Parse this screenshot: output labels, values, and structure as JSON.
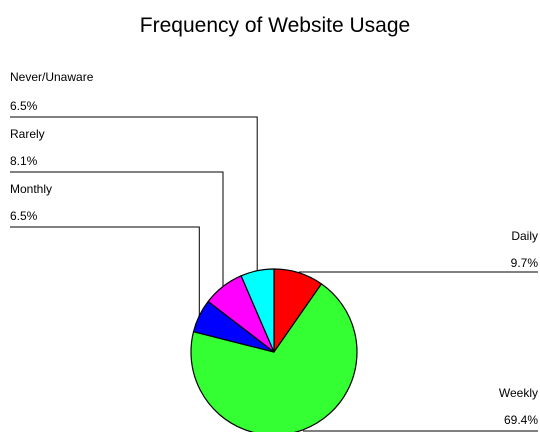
{
  "chart_data": {
    "type": "pie",
    "title": "Frequency of Website Usage",
    "slices": [
      {
        "label": "Daily",
        "value_label": "9.7%",
        "value": 9.7,
        "color": "#ff0000"
      },
      {
        "label": "Weekly",
        "value_label": "69.4%",
        "value": 69.4,
        "color": "#33ff33"
      },
      {
        "label": "Monthly",
        "value_label": "6.5%",
        "value": 6.5,
        "color": "#0000ff"
      },
      {
        "label": "Rarely",
        "value_label": "8.1%",
        "value": 8.1,
        "color": "#ff00ff"
      },
      {
        "label": "Never/Unaware",
        "value_label": "6.5%",
        "value": 6.5,
        "color": "#00ffff"
      }
    ],
    "start_angle": "top",
    "direction": "clockwise",
    "legend": "none"
  }
}
